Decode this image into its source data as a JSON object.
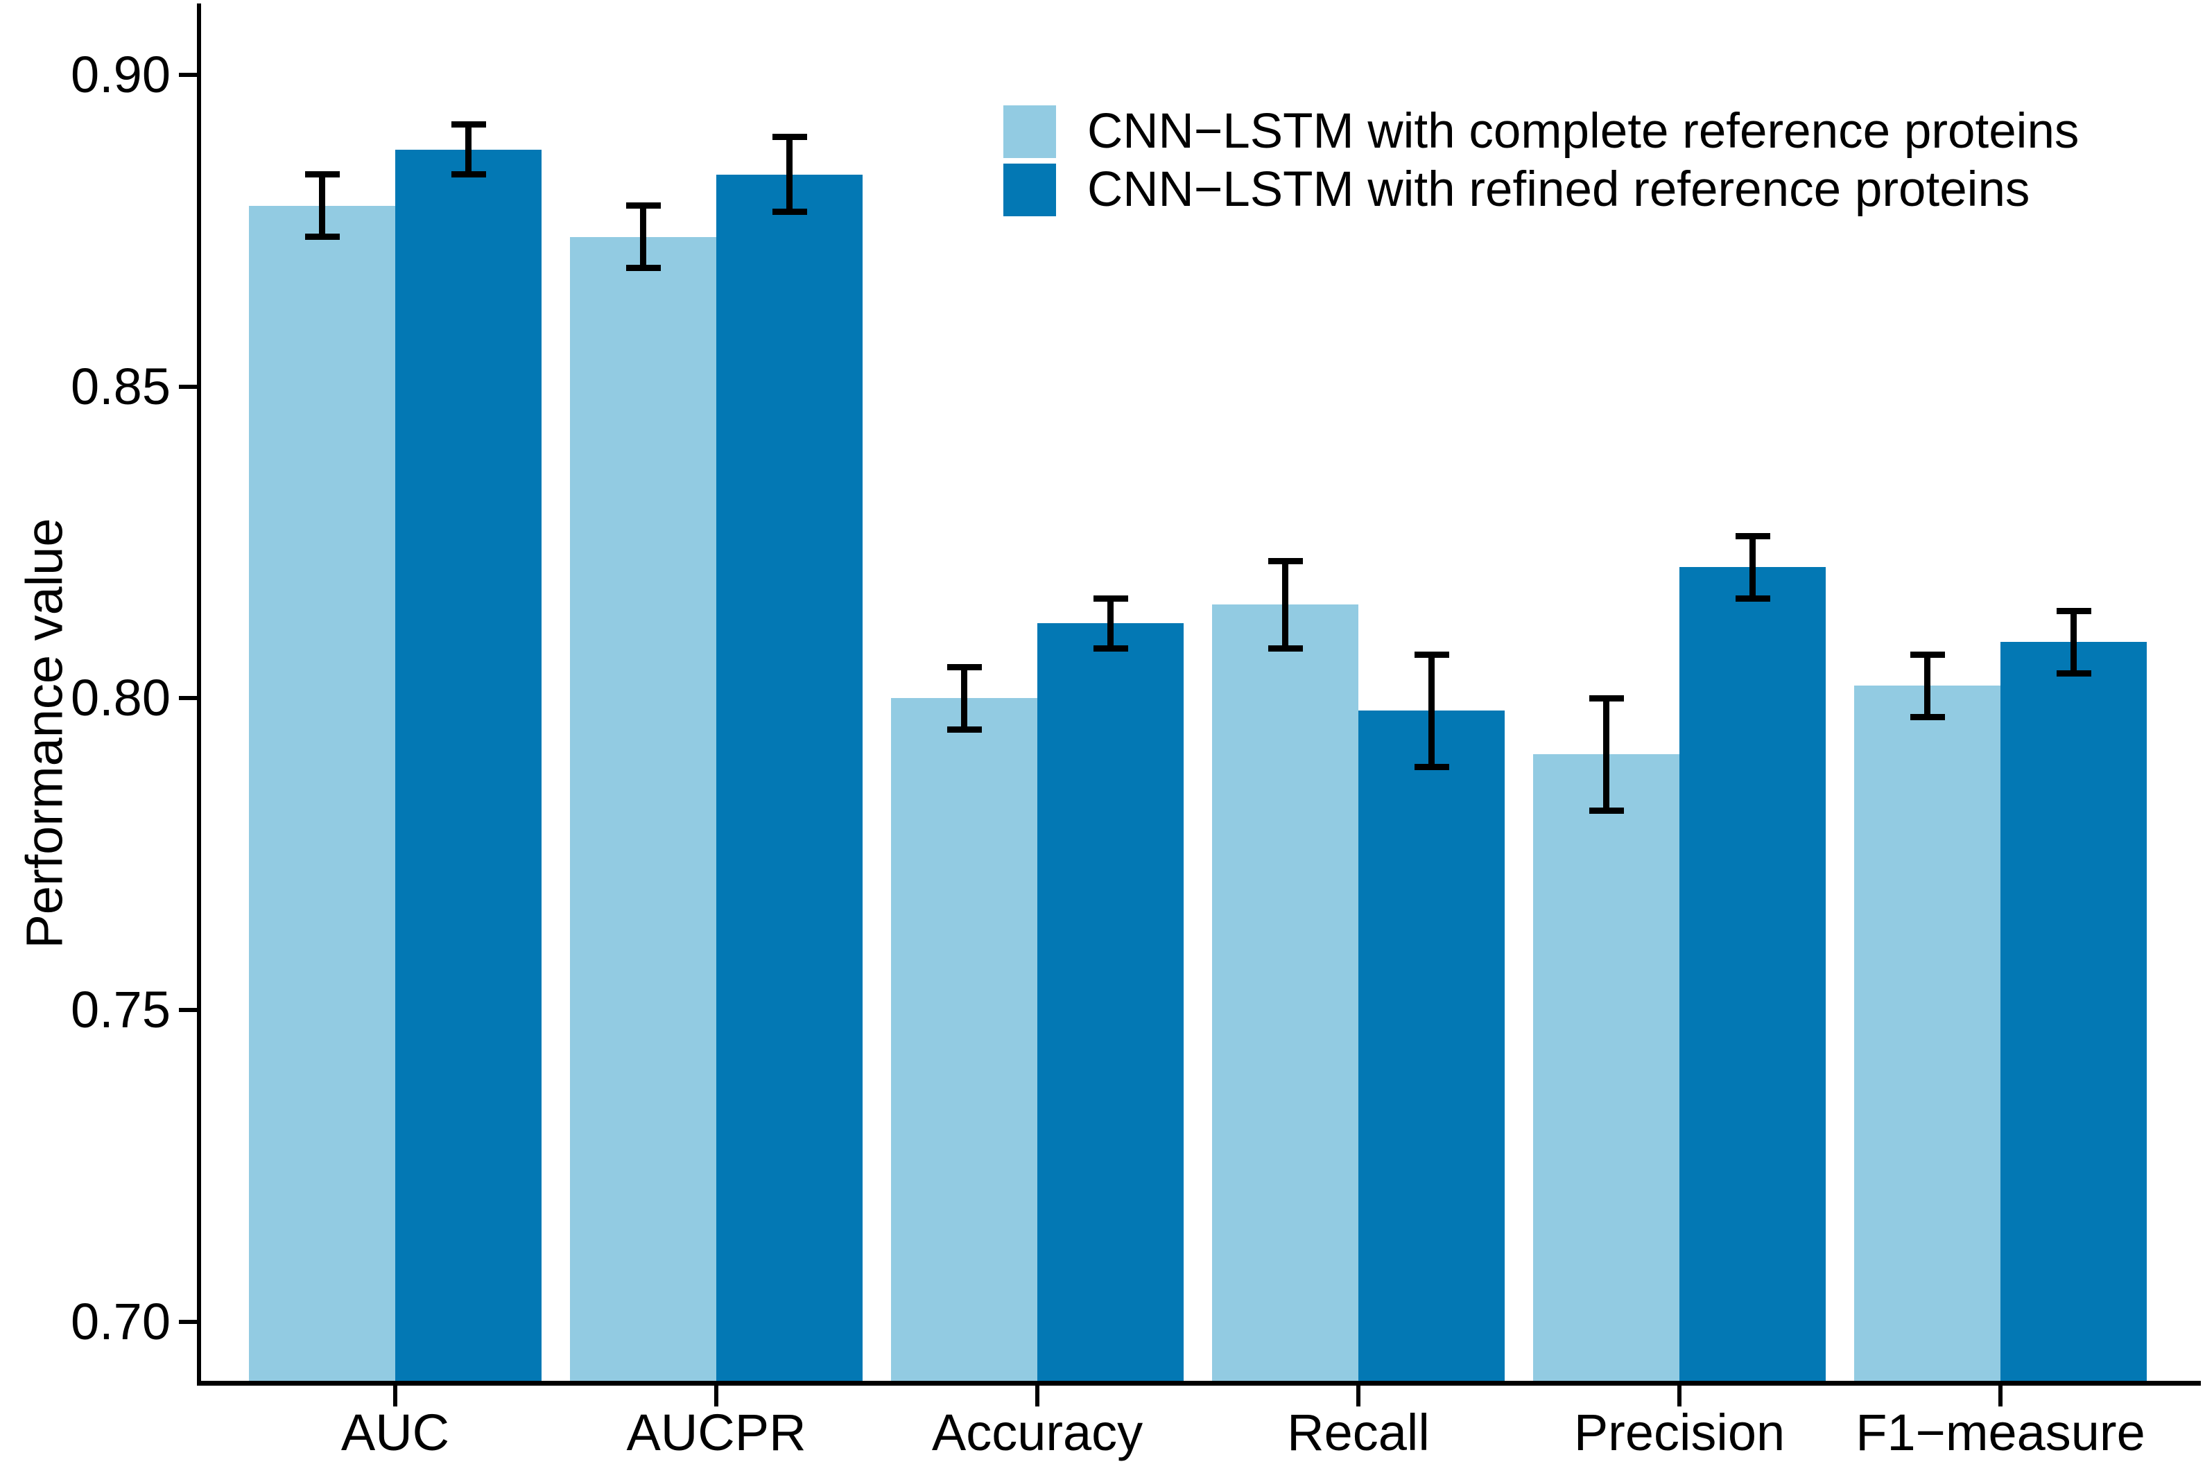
{
  "figure": {
    "background": "#ffffff",
    "axis_color": "#000000",
    "error_bar_color": "#000000"
  },
  "y_axis": {
    "label": "Performance value",
    "tick_labels": [
      "0.90",
      "0.85",
      "0.80",
      "0.75",
      "0.70"
    ],
    "tick_values": [
      0.9,
      0.85,
      0.8,
      0.75,
      0.7
    ]
  },
  "x_axis": {
    "categories": [
      "AUC",
      "AUCPR",
      "Accuracy",
      "Recall",
      "Precision",
      "F1−measure"
    ]
  },
  "legend": {
    "items": [
      {
        "label": "CNN−LSTM with complete reference proteins",
        "color": "#92CBE2"
      },
      {
        "label": "CNN−LSTM with refined reference proteins",
        "color": "#0378B4"
      }
    ]
  },
  "chart_data": {
    "type": "bar",
    "title": "",
    "xlabel": "",
    "ylabel": "Performance value",
    "categories": [
      "AUC",
      "AUCPR",
      "Accuracy",
      "Recall",
      "Precision",
      "F1−measure"
    ],
    "series": [
      {
        "name": "CNN−LSTM with complete reference proteins",
        "color": "#92CBE2",
        "values": [
          0.879,
          0.874,
          0.8,
          0.815,
          0.791,
          0.802
        ],
        "errors": [
          0.005,
          0.005,
          0.005,
          0.007,
          0.009,
          0.005
        ]
      },
      {
        "name": "CNN−LSTM with refined reference proteins",
        "color": "#0378B4",
        "values": [
          0.888,
          0.884,
          0.812,
          0.798,
          0.821,
          0.809
        ],
        "errors": [
          0.004,
          0.006,
          0.004,
          0.009,
          0.005,
          0.005
        ]
      }
    ],
    "ylim": [
      0.69,
      0.9115
    ],
    "yticks": [
      0.9,
      0.85,
      0.8,
      0.75,
      0.7
    ],
    "grid": false,
    "error_bars": true,
    "legend_position": "top-right"
  }
}
